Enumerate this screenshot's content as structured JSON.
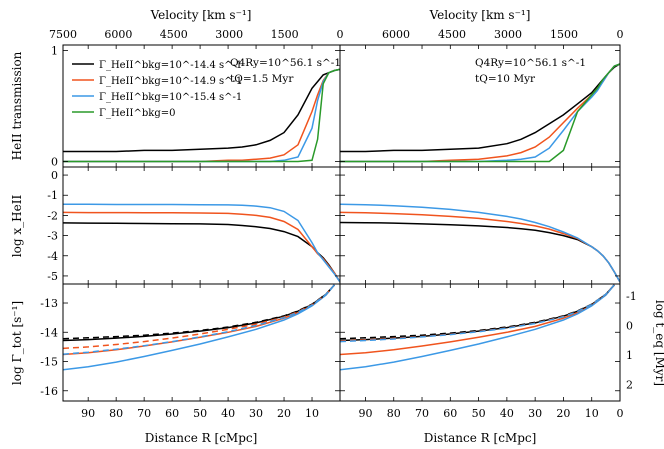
{
  "figure": {
    "velocity_label": "Velocity [km s⁻¹]",
    "distance_label": "Distance R [cMpc]",
    "ylabel_trans": "HeII transmission",
    "ylabel_xhe": "log x_HeII",
    "ylabel_gamma": "log Γ_tot [s⁻¹]",
    "ylabel_teq": "log t_eq [Myr]",
    "velocity_ticks_left": [
      "7500",
      "6000",
      "4500",
      "3000",
      "1500",
      "0"
    ],
    "velocity_ticks_right": [
      "6000",
      "4500",
      "3000",
      "1500",
      "0"
    ],
    "distance_ticks": [
      "90",
      "80",
      "70",
      "60",
      "50",
      "40",
      "30",
      "20",
      "10"
    ],
    "distance_ticks_right": [
      "90",
      "80",
      "70",
      "60",
      "50",
      "40",
      "30",
      "20",
      "10",
      "0"
    ],
    "trans_ticks": [
      "1",
      "0"
    ],
    "xhe_ticks": [
      "0",
      "-1",
      "-2",
      "-3",
      "-4",
      "-5"
    ],
    "gamma_ticks": [
      "-13",
      "-14",
      "-15",
      "-16"
    ],
    "teq_ticks": [
      "-1",
      "0",
      "1",
      "2"
    ],
    "legend": [
      {
        "label": "Γ_HeII^bkg=10^-14.4 s^-1",
        "color": "#000000"
      },
      {
        "label": "Γ_HeII^bkg=10^-14.9 s^-1",
        "color": "#f0541e"
      },
      {
        "label": "Γ_HeII^bkg=10^-15.4 s^-1",
        "color": "#3c99e6"
      },
      {
        "label": "Γ_HeII^bkg=0",
        "color": "#2a9a2a"
      }
    ],
    "annotations_left": {
      "q": "Q4Ry=10^56.1 s^-1",
      "t": "tQ=1.5 Myr"
    },
    "annotations_right": {
      "q": "Q4Ry=10^56.1 s^-1",
      "t": "tQ=10 Myr"
    }
  },
  "chart_data": [
    {
      "type": "line",
      "panel": "transmission",
      "tQ": "1.5 Myr",
      "xlim": [
        99,
        0
      ],
      "ylim": [
        -0.05,
        1.05
      ],
      "x": [
        99,
        90,
        80,
        70,
        60,
        50,
        40,
        35,
        30,
        25,
        20,
        15,
        10,
        8,
        6,
        4,
        2,
        0
      ],
      "series": [
        {
          "name": "Γ_HeII^bkg=10^-14.4",
          "color": "#000000",
          "values": [
            0.09,
            0.09,
            0.09,
            0.1,
            0.1,
            0.11,
            0.12,
            0.13,
            0.15,
            0.19,
            0.26,
            0.42,
            0.66,
            0.72,
            0.78,
            0.8,
            0.82,
            0.83
          ]
        },
        {
          "name": "Γ_HeII^bkg=10^-14.9",
          "color": "#f0541e",
          "values": [
            0.0,
            0.0,
            0.0,
            0.0,
            0.0,
            0.0,
            0.01,
            0.01,
            0.02,
            0.03,
            0.06,
            0.15,
            0.45,
            0.6,
            0.73,
            0.8,
            0.82,
            0.83
          ]
        },
        {
          "name": "Γ_HeII^bkg=10^-15.4",
          "color": "#3c99e6",
          "values": [
            0.0,
            0.0,
            0.0,
            0.0,
            0.0,
            0.0,
            0.0,
            0.0,
            0.0,
            0.0,
            0.01,
            0.04,
            0.3,
            0.55,
            0.72,
            0.8,
            0.82,
            0.83
          ]
        },
        {
          "name": "Γ_HeII^bkg=0",
          "color": "#2a9a2a",
          "values": [
            0.0,
            0.0,
            0.0,
            0.0,
            0.0,
            0.0,
            0.0,
            0.0,
            0.0,
            0.0,
            0.0,
            0.0,
            0.01,
            0.2,
            0.7,
            0.8,
            0.82,
            0.83
          ]
        }
      ]
    },
    {
      "type": "line",
      "panel": "transmission",
      "tQ": "10 Myr",
      "xlim": [
        99,
        0
      ],
      "ylim": [
        -0.05,
        1.05
      ],
      "x": [
        99,
        90,
        80,
        70,
        60,
        50,
        40,
        35,
        30,
        25,
        20,
        15,
        10,
        8,
        6,
        4,
        2,
        0
      ],
      "series": [
        {
          "name": "Γ_HeII^bkg=10^-14.4",
          "color": "#000000",
          "values": [
            0.09,
            0.09,
            0.1,
            0.1,
            0.11,
            0.12,
            0.16,
            0.2,
            0.26,
            0.34,
            0.42,
            0.52,
            0.62,
            0.68,
            0.74,
            0.8,
            0.85,
            0.88
          ]
        },
        {
          "name": "Γ_HeII^bkg=10^-14.9",
          "color": "#f0541e",
          "values": [
            0.0,
            0.0,
            0.0,
            0.0,
            0.01,
            0.02,
            0.05,
            0.08,
            0.13,
            0.22,
            0.35,
            0.48,
            0.6,
            0.66,
            0.72,
            0.8,
            0.86,
            0.88
          ]
        },
        {
          "name": "Γ_HeII^bkg=10^-15.4",
          "color": "#3c99e6",
          "values": [
            0.0,
            0.0,
            0.0,
            0.0,
            0.0,
            0.0,
            0.01,
            0.02,
            0.04,
            0.12,
            0.28,
            0.45,
            0.58,
            0.64,
            0.72,
            0.8,
            0.86,
            0.88
          ]
        },
        {
          "name": "Γ_HeII^bkg=0",
          "color": "#2a9a2a",
          "values": [
            0.0,
            0.0,
            0.0,
            0.0,
            0.0,
            0.0,
            0.0,
            0.0,
            0.0,
            0.0,
            0.1,
            0.45,
            0.6,
            0.66,
            0.74,
            0.8,
            0.86,
            0.88
          ]
        }
      ]
    },
    {
      "type": "line",
      "panel": "log_xHeII",
      "tQ": "1.5 Myr",
      "xlim": [
        99,
        0
      ],
      "ylim": [
        -5.4,
        0.4
      ],
      "x": [
        99,
        90,
        80,
        70,
        60,
        50,
        40,
        35,
        30,
        25,
        20,
        15,
        10,
        8,
        6,
        4,
        2,
        0
      ],
      "series": [
        {
          "name": "Γ_HeII^bkg=10^-14.4",
          "color": "#000000",
          "values": [
            -2.37,
            -2.38,
            -2.39,
            -2.4,
            -2.41,
            -2.42,
            -2.45,
            -2.5,
            -2.56,
            -2.65,
            -2.8,
            -3.05,
            -3.55,
            -3.85,
            -4.1,
            -4.45,
            -4.85,
            -5.3
          ]
        },
        {
          "name": "Γ_HeII^bkg=10^-14.9",
          "color": "#f0541e",
          "values": [
            -1.85,
            -1.86,
            -1.86,
            -1.87,
            -1.87,
            -1.88,
            -1.9,
            -1.94,
            -2.0,
            -2.1,
            -2.3,
            -2.7,
            -3.55,
            -3.9,
            -4.15,
            -4.5,
            -4.85,
            -5.3
          ]
        },
        {
          "name": "Γ_HeII^bkg=10^-15.4",
          "color": "#3c99e6",
          "values": [
            -1.45,
            -1.45,
            -1.46,
            -1.46,
            -1.46,
            -1.47,
            -1.48,
            -1.5,
            -1.54,
            -1.62,
            -1.8,
            -2.25,
            -3.35,
            -3.85,
            -4.2,
            -4.55,
            -4.9,
            -5.3
          ]
        }
      ]
    },
    {
      "type": "line",
      "panel": "log_xHeII",
      "tQ": "10 Myr",
      "xlim": [
        99,
        0
      ],
      "ylim": [
        -5.4,
        0.4
      ],
      "x": [
        99,
        90,
        80,
        70,
        60,
        50,
        40,
        35,
        30,
        25,
        20,
        15,
        10,
        8,
        6,
        4,
        2,
        0
      ],
      "series": [
        {
          "name": "Γ_HeII^bkg=10^-14.4",
          "color": "#000000",
          "values": [
            -2.35,
            -2.36,
            -2.38,
            -2.42,
            -2.46,
            -2.52,
            -2.6,
            -2.66,
            -2.74,
            -2.85,
            -3.0,
            -3.2,
            -3.55,
            -3.75,
            -4.0,
            -4.35,
            -4.8,
            -5.3
          ]
        },
        {
          "name": "Γ_HeII^bkg=10^-14.9",
          "color": "#f0541e",
          "values": [
            -1.85,
            -1.87,
            -1.91,
            -1.97,
            -2.05,
            -2.15,
            -2.3,
            -2.4,
            -2.52,
            -2.68,
            -2.9,
            -3.15,
            -3.55,
            -3.75,
            -4.0,
            -4.35,
            -4.8,
            -5.3
          ]
        },
        {
          "name": "Γ_HeII^bkg=10^-15.4",
          "color": "#3c99e6",
          "values": [
            -1.45,
            -1.47,
            -1.52,
            -1.6,
            -1.7,
            -1.85,
            -2.05,
            -2.18,
            -2.35,
            -2.56,
            -2.82,
            -3.12,
            -3.55,
            -3.75,
            -4.0,
            -4.35,
            -4.8,
            -5.3
          ]
        }
      ]
    },
    {
      "type": "line",
      "panel": "log_Gamma_tot",
      "tQ": "1.5 Myr",
      "xlim": [
        99,
        0
      ],
      "ylim": [
        -16.35,
        -12.35
      ],
      "x": [
        99,
        90,
        80,
        70,
        60,
        50,
        40,
        30,
        20,
        15,
        10,
        5,
        2
      ],
      "series": [
        {
          "name": "Γ_HeII^bkg=10^-14.4 (total)",
          "color": "#000000",
          "values": [
            -14.28,
            -14.25,
            -14.2,
            -14.14,
            -14.06,
            -13.96,
            -13.84,
            -13.68,
            -13.45,
            -13.28,
            -13.05,
            -12.7,
            -12.38
          ]
        },
        {
          "name": "Γ_HeII^bkg=10^-14.9 (total)",
          "color": "#f0541e",
          "values": [
            -14.76,
            -14.7,
            -14.6,
            -14.47,
            -14.33,
            -14.17,
            -14.0,
            -13.8,
            -13.52,
            -13.33,
            -13.08,
            -12.72,
            -12.38
          ]
        },
        {
          "name": "Γ_HeII^bkg=10^-15.4 (total)",
          "color": "#3c99e6",
          "values": [
            -15.28,
            -15.18,
            -15.02,
            -14.83,
            -14.62,
            -14.4,
            -14.16,
            -13.9,
            -13.58,
            -13.37,
            -13.1,
            -12.73,
            -12.38
          ]
        },
        {
          "name": "Γ_HeII^bkg=10^-14.4 (dashed)",
          "color": "#000000",
          "dashed": true,
          "values": [
            -14.22,
            -14.19,
            -14.15,
            -14.1,
            -14.03,
            -13.94,
            -13.82,
            -13.66,
            -13.44,
            -13.27,
            -13.04,
            -12.7,
            -12.38
          ]
        },
        {
          "name": "Γ_HeII^bkg=10^-14.9 (dashed)",
          "color": "#f0541e",
          "dashed": true,
          "values": [
            -14.55,
            -14.5,
            -14.42,
            -14.32,
            -14.2,
            -14.06,
            -13.9,
            -13.72,
            -13.48,
            -13.3,
            -13.06,
            -12.71,
            -12.38
          ]
        },
        {
          "name": "Γ_HeII^bkg=10^-15.4 (dashed)",
          "color": "#3c99e6",
          "dashed": true,
          "values": [
            -14.75,
            -14.68,
            -14.58,
            -14.46,
            -14.32,
            -14.16,
            -13.98,
            -13.77,
            -13.5,
            -13.32,
            -13.07,
            -12.71,
            -12.38
          ]
        }
      ]
    },
    {
      "type": "line",
      "panel": "log_Gamma_tot",
      "tQ": "10 Myr",
      "xlim": [
        99,
        0
      ],
      "ylim": [
        -16.35,
        -12.35
      ],
      "x": [
        99,
        90,
        80,
        70,
        60,
        50,
        40,
        30,
        20,
        15,
        10,
        5,
        2
      ],
      "series": [
        {
          "name": "Γ_HeII^bkg=10^-14.4 (total)",
          "color": "#000000",
          "values": [
            -14.28,
            -14.25,
            -14.2,
            -14.14,
            -14.06,
            -13.96,
            -13.84,
            -13.68,
            -13.45,
            -13.28,
            -13.05,
            -12.7,
            -12.38
          ]
        },
        {
          "name": "Γ_HeII^bkg=10^-14.9 (total)",
          "color": "#f0541e",
          "values": [
            -14.76,
            -14.7,
            -14.6,
            -14.47,
            -14.33,
            -14.17,
            -14.0,
            -13.8,
            -13.52,
            -13.33,
            -13.08,
            -12.72,
            -12.38
          ]
        },
        {
          "name": "Γ_HeII^bkg=10^-15.4 (total)",
          "color": "#3c99e6",
          "values": [
            -15.28,
            -15.18,
            -15.02,
            -14.83,
            -14.62,
            -14.4,
            -14.16,
            -13.9,
            -13.58,
            -13.37,
            -13.1,
            -12.73,
            -12.38
          ]
        },
        {
          "name": "Γ_HeII^bkg=10^-14.4 (dashed)",
          "color": "#000000",
          "dashed": true,
          "values": [
            -14.22,
            -14.19,
            -14.15,
            -14.1,
            -14.03,
            -13.94,
            -13.82,
            -13.66,
            -13.44,
            -13.27,
            -13.04,
            -12.7,
            -12.38
          ]
        },
        {
          "name": "Γ_HeII^bkg=10^-14.9 (dashed)",
          "color": "#f0541e",
          "dashed": true,
          "values": [
            -14.3,
            -14.26,
            -14.21,
            -14.15,
            -14.07,
            -13.97,
            -13.85,
            -13.69,
            -13.46,
            -13.29,
            -13.05,
            -12.7,
            -12.38
          ]
        },
        {
          "name": "Γ_HeII^bkg=10^-15.4 (dashed)",
          "color": "#3c99e6",
          "dashed": true,
          "values": [
            -14.32,
            -14.28,
            -14.23,
            -14.16,
            -14.08,
            -13.98,
            -13.86,
            -13.7,
            -13.47,
            -13.29,
            -13.05,
            -12.7,
            -12.38
          ]
        }
      ]
    }
  ]
}
